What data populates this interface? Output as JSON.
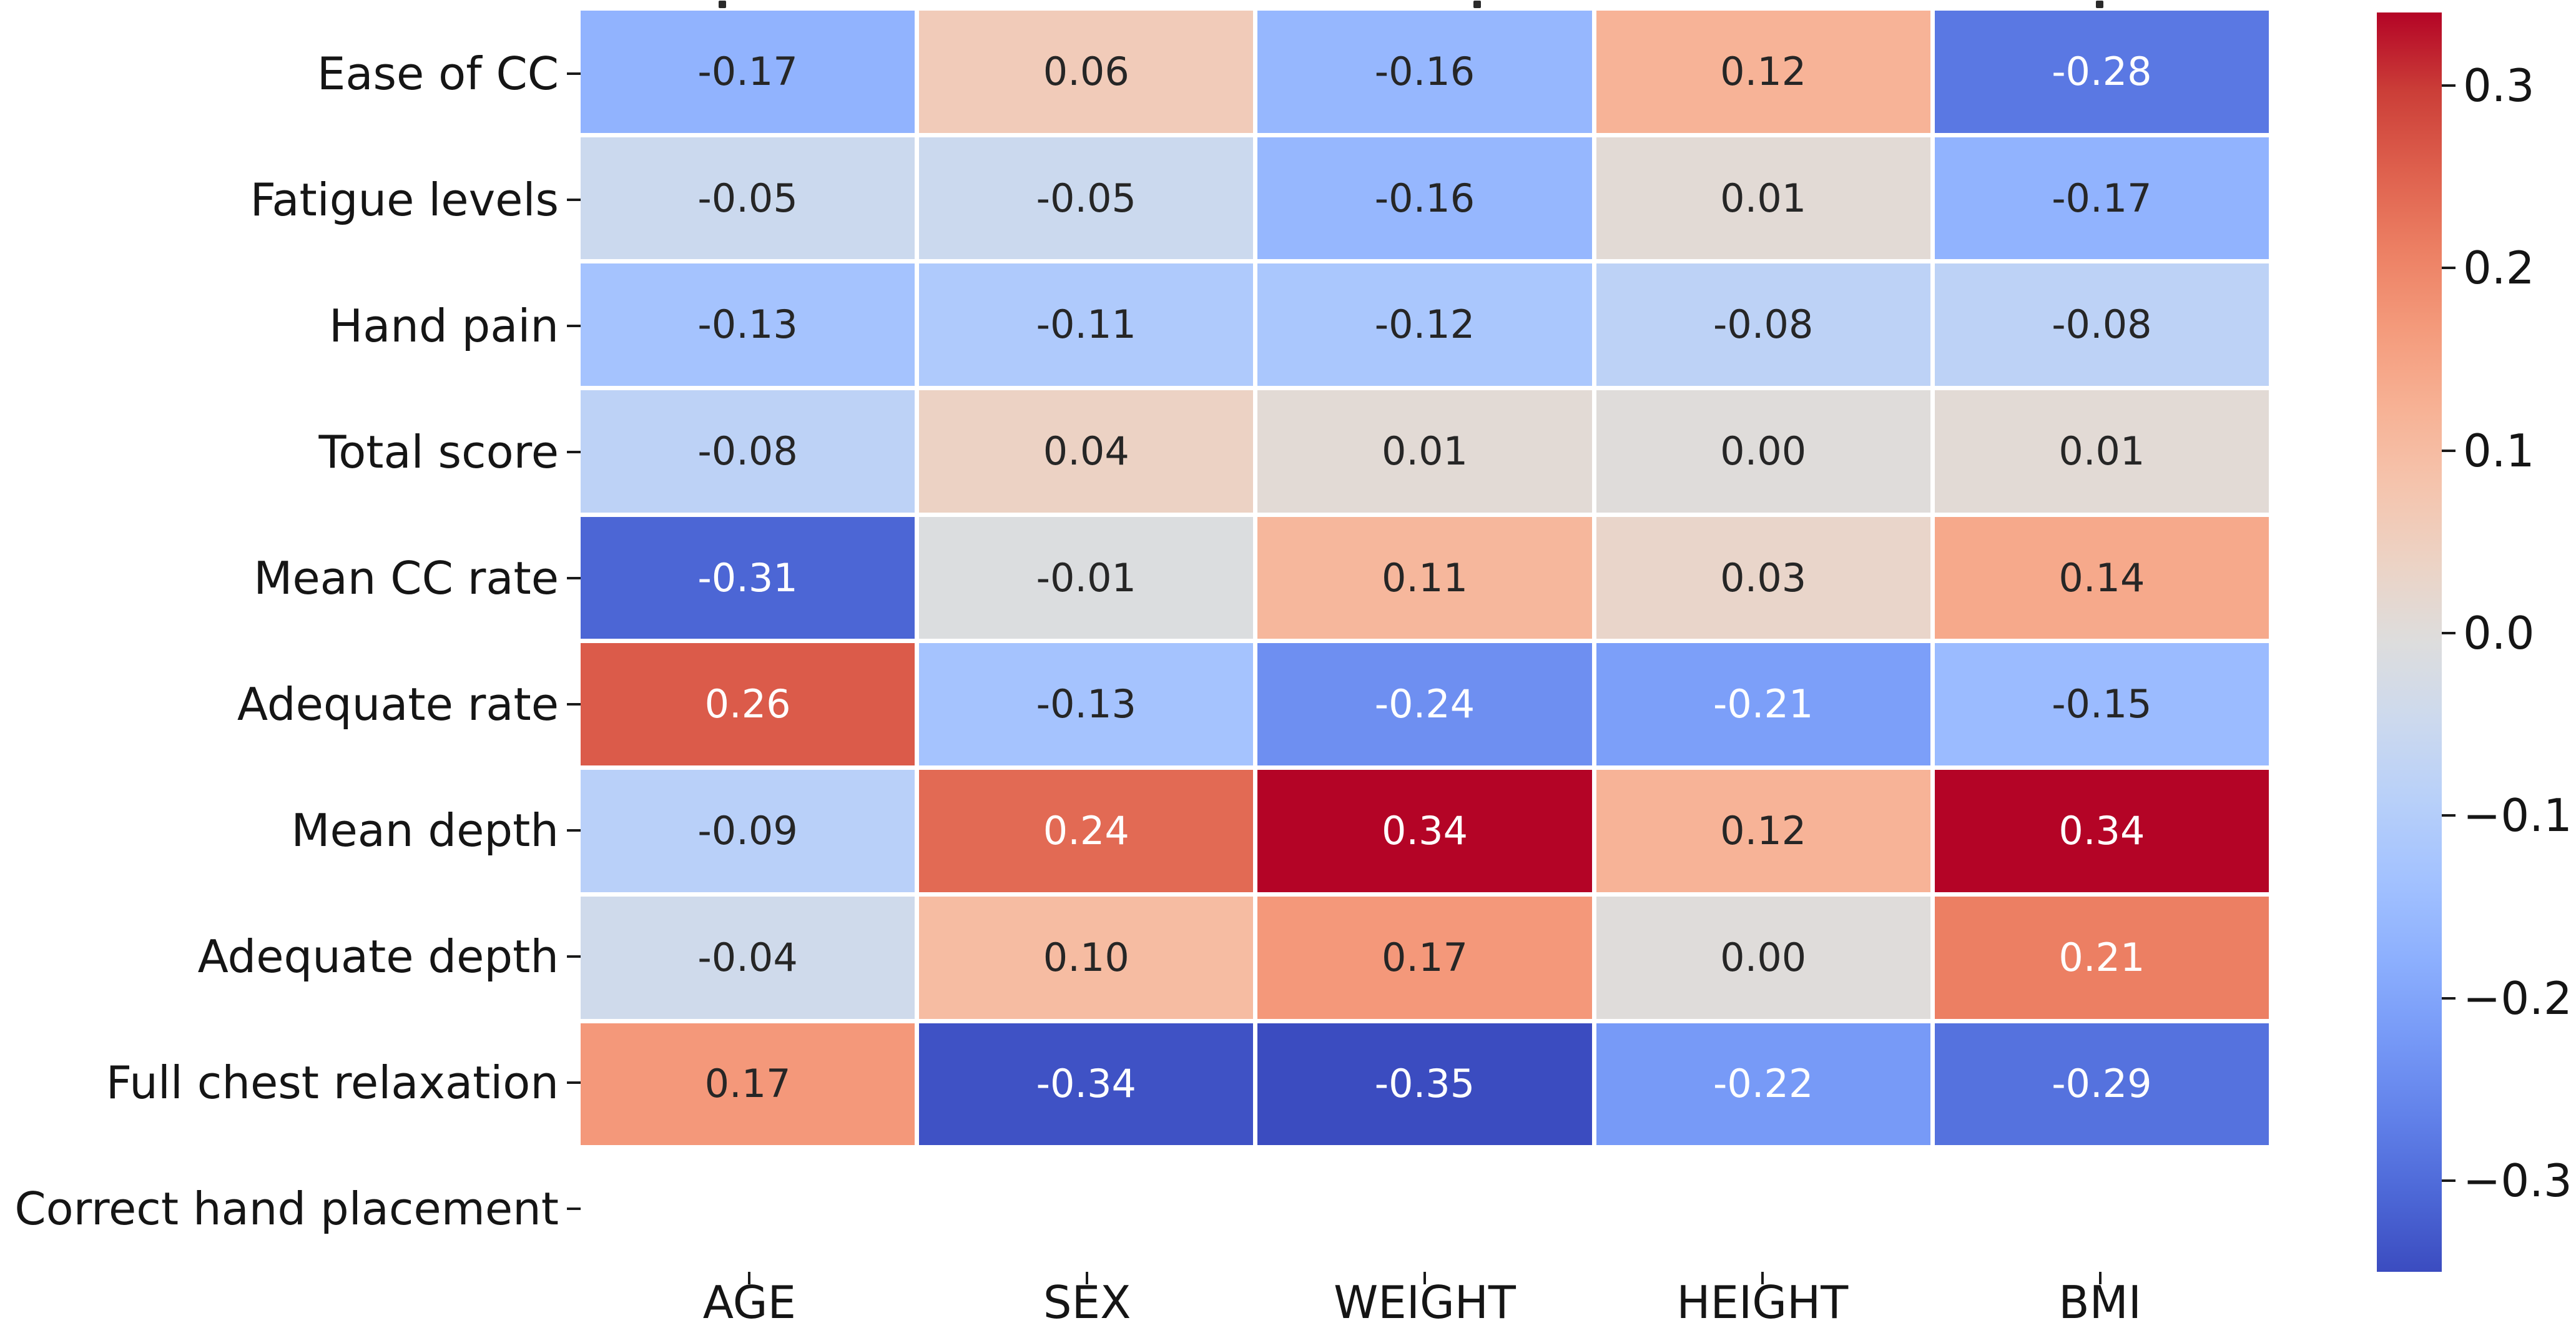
{
  "figure": {
    "background": "#ffffff"
  },
  "chart_data": {
    "type": "heatmap",
    "title": "",
    "xlabel": "",
    "ylabel": "",
    "rows": [
      "Ease of CC",
      "Fatigue levels",
      "Hand pain",
      "Total score",
      "Mean CC rate",
      "Adequate rate",
      "Mean depth",
      "Adequate depth",
      "Full chest relaxation",
      "Correct hand placement"
    ],
    "columns": [
      "AGE",
      "SEX",
      "WEIGHT",
      "HEIGHT",
      "BMI"
    ],
    "values": [
      [
        -0.17,
        0.06,
        -0.16,
        0.12,
        -0.28
      ],
      [
        -0.05,
        -0.05,
        -0.16,
        0.01,
        -0.17
      ],
      [
        -0.13,
        -0.11,
        -0.12,
        -0.08,
        -0.08
      ],
      [
        -0.08,
        0.04,
        0.01,
        0.0,
        0.01
      ],
      [
        -0.31,
        -0.01,
        0.11,
        0.03,
        0.14
      ],
      [
        0.26,
        -0.13,
        -0.24,
        -0.21,
        -0.15
      ],
      [
        -0.09,
        0.24,
        0.34,
        0.12,
        0.34
      ],
      [
        -0.04,
        0.1,
        0.17,
        0.0,
        0.21
      ],
      [
        0.17,
        -0.34,
        -0.35,
        -0.22,
        -0.29
      ],
      [
        null,
        null,
        null,
        null,
        null
      ]
    ],
    "cell_labels": [
      [
        "-0.17",
        "0.06",
        "-0.16",
        "0.12",
        "-0.28"
      ],
      [
        "-0.05",
        "-0.05",
        "-0.16",
        "0.01",
        "-0.17"
      ],
      [
        "-0.13",
        "-0.11",
        "-0.12",
        "-0.08",
        "-0.08"
      ],
      [
        "-0.08",
        "0.04",
        "0.01",
        "0.00",
        "0.01"
      ],
      [
        "-0.31",
        "-0.01",
        "0.11",
        "0.03",
        "0.14"
      ],
      [
        "0.26",
        "-0.13",
        "-0.24",
        "-0.21",
        "-0.15"
      ],
      [
        "-0.09",
        "0.24",
        "0.34",
        "0.12",
        "0.34"
      ],
      [
        "-0.04",
        "0.10",
        "0.17",
        "0.00",
        "0.21"
      ],
      [
        "0.17",
        "-0.34",
        "-0.35",
        "-0.22",
        "-0.29"
      ],
      [
        null,
        null,
        null,
        null,
        null
      ]
    ],
    "colormap": "coolwarm",
    "colormap_colors": {
      "min": "#3b4cc0",
      "mid": "#dddddd",
      "max": "#b40426"
    },
    "vmin": -0.35,
    "vmax": 0.34,
    "grid": true,
    "gridline_color": "#ffffff",
    "legend_position": "right",
    "colorbar": {
      "ticks": [
        0.3,
        0.2,
        0.1,
        0.0,
        -0.1,
        -0.2,
        -0.3
      ],
      "tick_labels": [
        "0.3",
        "0.2",
        "0.1",
        "0.0",
        "−0.1",
        "−0.2",
        "−0.3"
      ]
    }
  }
}
